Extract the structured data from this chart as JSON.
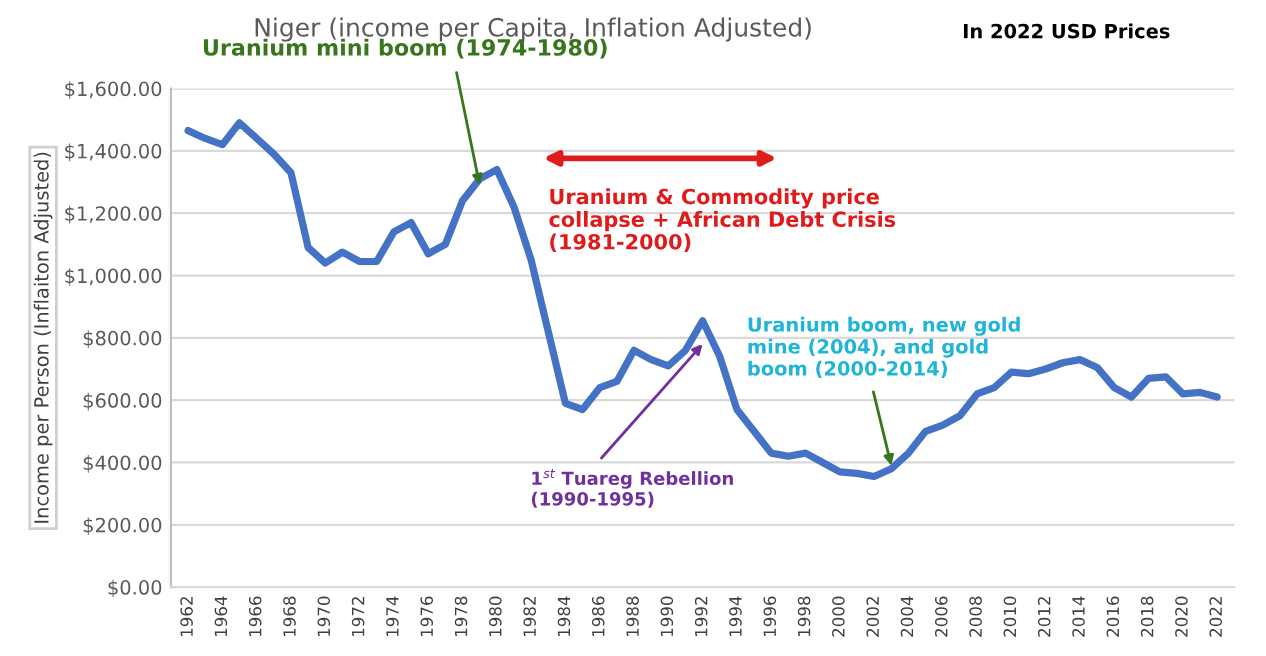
{
  "chart_data": {
    "type": "line",
    "title": "Niger (income per Capita, Inflation Adjusted)",
    "subtitle": "In 2022 USD Prices",
    "ylabel": "Income per Person (Inflaiton Adjusted)",
    "x": [
      1962,
      1963,
      1964,
      1965,
      1966,
      1967,
      1968,
      1969,
      1970,
      1971,
      1972,
      1973,
      1974,
      1975,
      1976,
      1977,
      1978,
      1979,
      1980,
      1981,
      1982,
      1983,
      1984,
      1985,
      1986,
      1987,
      1988,
      1989,
      1990,
      1991,
      1992,
      1993,
      1994,
      1995,
      1996,
      1997,
      1998,
      1999,
      2000,
      2001,
      2002,
      2003,
      2004,
      2005,
      2006,
      2007,
      2008,
      2009,
      2010,
      2011,
      2012,
      2013,
      2014,
      2015,
      2016,
      2017,
      2018,
      2019,
      2020,
      2021,
      2022
    ],
    "series": [
      {
        "color": "#4472c4",
        "values": [
          1465,
          1440,
          1420,
          1490,
          1440,
          1390,
          1330,
          1090,
          1040,
          1075,
          1045,
          1045,
          1140,
          1170,
          1070,
          1100,
          1240,
          1310,
          1340,
          1220,
          1050,
          820,
          590,
          570,
          640,
          660,
          760,
          730,
          710,
          760,
          855,
          740,
          570,
          500,
          430,
          420,
          430,
          400,
          370,
          365,
          355,
          380,
          430,
          500,
          520,
          550,
          620,
          640,
          690,
          685,
          700,
          720,
          730,
          705,
          640,
          610,
          670,
          675,
          620,
          625,
          610
        ]
      }
    ],
    "xlim": [
      1961,
      2023
    ],
    "xticks": [
      1962,
      1964,
      1966,
      1968,
      1970,
      1972,
      1974,
      1976,
      1978,
      1980,
      1982,
      1984,
      1986,
      1988,
      1990,
      1992,
      1994,
      1996,
      1998,
      2000,
      2002,
      2004,
      2006,
      2008,
      2010,
      2012,
      2014,
      2016,
      2018,
      2020,
      2022
    ],
    "ylim": [
      0,
      1600
    ],
    "yticks": [
      {
        "value": 0,
        "label": "$0.00"
      },
      {
        "value": 200,
        "label": "$200.00"
      },
      {
        "value": 400,
        "label": "$400.00"
      },
      {
        "value": 600,
        "label": "$600.00"
      },
      {
        "value": 800,
        "label": "$800.00"
      },
      {
        "value": 1000,
        "label": "$1,000.00"
      },
      {
        "value": 1200,
        "label": "$1,200.00"
      },
      {
        "value": 1400,
        "label": "$1,400.00"
      },
      {
        "value": 1600,
        "label": "$1,600.00"
      }
    ],
    "grid": "y",
    "marker": "none",
    "line_style": "solid",
    "annotations": [
      {
        "text": "Uranium mini boom (1974-1980)",
        "x": 1979,
        "y": 1290
      },
      "Uranium & Commodity price\ncollapse + African Debt Crisis\n(1981-2000)",
      {
        "text": "1$^{st}$ Tuareg Rebellion\n(1990-1995)",
        "x": 1992,
        "y": 780
      },
      {
        "text": "Uranium boom, new gold\nmine (2004), and gold\nboom (2000-2014)",
        "x": 2003,
        "y": 390
      }
    ]
  }
}
